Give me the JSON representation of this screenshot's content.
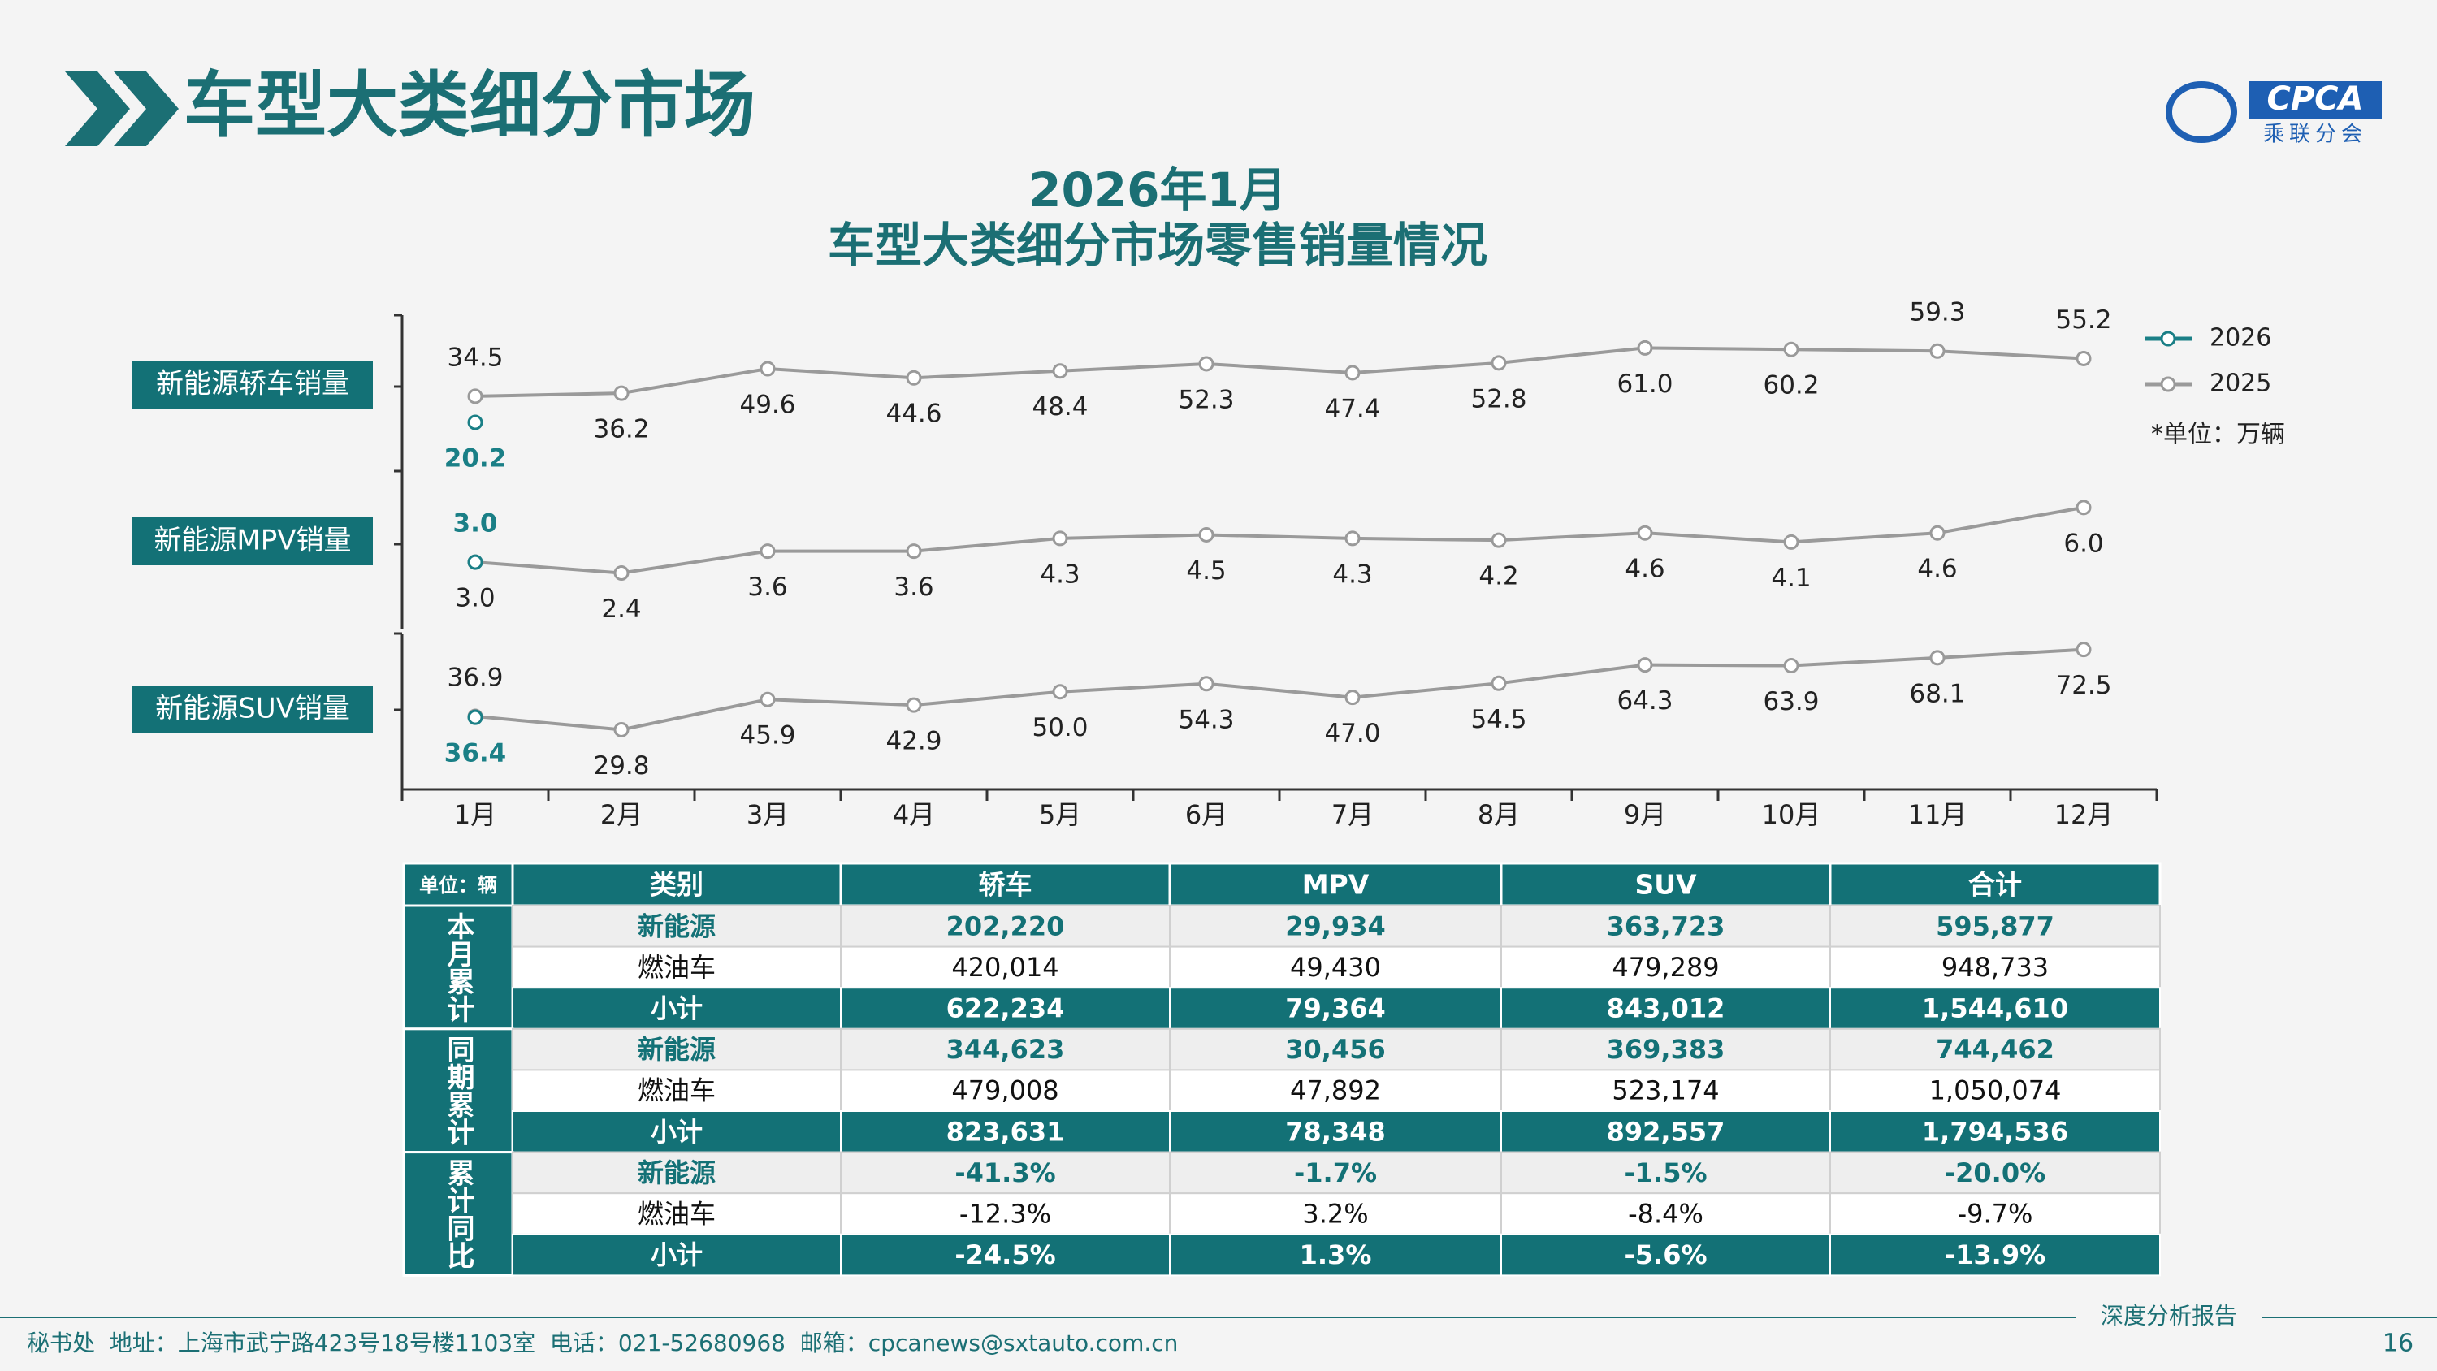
{
  "header": {
    "title": "车型大类细分市场",
    "logo_text": "CPCA",
    "logo_sub": "乘联分会"
  },
  "chart_heading": {
    "line1": "2026年1月",
    "line2": "车型大类细分市场零售销量情况"
  },
  "chart_data": [
    {
      "type": "line",
      "label": "新能源轿车销量",
      "unit": "*单位：万辆",
      "ylim": [
        -6.5,
        79
      ],
      "series": [
        {
          "name": "2026",
          "color": "#1a7f86",
          "values": [
            20.2,
            null,
            null,
            null,
            null,
            null,
            null,
            null,
            null,
            null,
            null,
            null
          ]
        },
        {
          "name": "2025",
          "color": "#9a9a9a",
          "values": [
            34.5,
            36.2,
            49.6,
            44.6,
            48.4,
            52.3,
            47.4,
            52.8,
            61.0,
            60.2,
            59.3,
            55.2
          ],
          "value_labels": [
            "34.5",
            "36.2",
            "49.6",
            "44.6",
            "48.4",
            "52.3",
            "47.4",
            "52.8",
            "61.0",
            "60.2",
            "59.3",
            "55.2"
          ]
        }
      ]
    },
    {
      "type": "line",
      "label": "新能源MPV销量",
      "ylim": [
        -0.7,
        8
      ],
      "series": [
        {
          "color": "#1a7f86",
          "values": [
            3.0,
            null,
            null,
            null,
            null,
            null,
            null,
            null,
            null,
            null,
            null,
            null
          ],
          "value_labels": [
            "3.0",
            null,
            null,
            null,
            null,
            null,
            null,
            null,
            null,
            null,
            null,
            null
          ]
        },
        {
          "color": "#9a9a9a",
          "values": [
            3.0,
            2.4,
            3.6,
            3.6,
            4.3,
            4.5,
            4.3,
            4.2,
            4.6,
            4.1,
            4.6,
            6.0
          ],
          "value_labels": [
            "3.0",
            "2.4",
            "3.6",
            "3.6",
            "4.3",
            "4.5",
            "4.3",
            "4.2",
            "4.6",
            "4.1",
            "4.6",
            "6.0"
          ]
        }
      ]
    },
    {
      "type": "line",
      "label": "新能源SUV销量",
      "ylim": [
        -2,
        81
      ],
      "categories": [
        "1月",
        "2月",
        "3月",
        "4月",
        "5月",
        "6月",
        "7月",
        "8月",
        "9月",
        "10月",
        "11月",
        "12月"
      ],
      "series": [
        {
          "color": "#1a7f86",
          "values": [
            36.4,
            null,
            null,
            null,
            null,
            null,
            null,
            null,
            null,
            null,
            null,
            null
          ]
        },
        {
          "color": "#9a9a9a",
          "values": [
            36.9,
            29.8,
            45.9,
            42.9,
            50.0,
            54.3,
            47.0,
            54.5,
            64.3,
            63.9,
            68.1,
            72.5
          ],
          "value_labels": [
            "36.9",
            "29.8",
            "45.9",
            "42.9",
            "50.0",
            "54.3",
            "47.0",
            "54.5",
            "64.3",
            "63.9",
            "68.1",
            "72.5"
          ]
        }
      ]
    }
  ],
  "table": {
    "header": [
      "单位：辆",
      "类别",
      "轿车",
      "MPV",
      "SUV",
      "合计"
    ],
    "groups": [
      {
        "label": "本月累计",
        "rows": [
          [
            "新能源",
            "202,220",
            "29,934",
            "363,723",
            "595,877"
          ],
          [
            "燃油车",
            "420,014",
            "49,430",
            "479,289",
            "948,733"
          ],
          [
            "小计",
            "622,234",
            "79,364",
            "843,012",
            "1,544,610"
          ]
        ]
      },
      {
        "label": "同期累计",
        "rows": [
          [
            "新能源",
            "344,623",
            "30,456",
            "369,383",
            "744,462"
          ],
          [
            "燃油车",
            "479,008",
            "47,892",
            "523,174",
            "1,050,074"
          ],
          [
            "小计",
            "823,631",
            "78,348",
            "892,557",
            "1,794,536"
          ]
        ]
      },
      {
        "label": "累计同比",
        "rows": [
          [
            "新能源",
            "-41.3%",
            "-1.7%",
            "-1.5%",
            "-20.0%"
          ],
          [
            "燃油车",
            "-12.3%",
            "3.2%",
            "-8.4%",
            "-9.7%"
          ],
          [
            "小计",
            "-24.5%",
            "1.3%",
            "-5.6%",
            "-13.9%"
          ]
        ]
      }
    ]
  },
  "footer": {
    "contact": "秘书处  地址：上海市武宁路423号18号楼1103室  电话：021-52680968  邮箱：cpcanews@sxtauto.com.cn",
    "report": "深度分析报告",
    "page": "16"
  }
}
